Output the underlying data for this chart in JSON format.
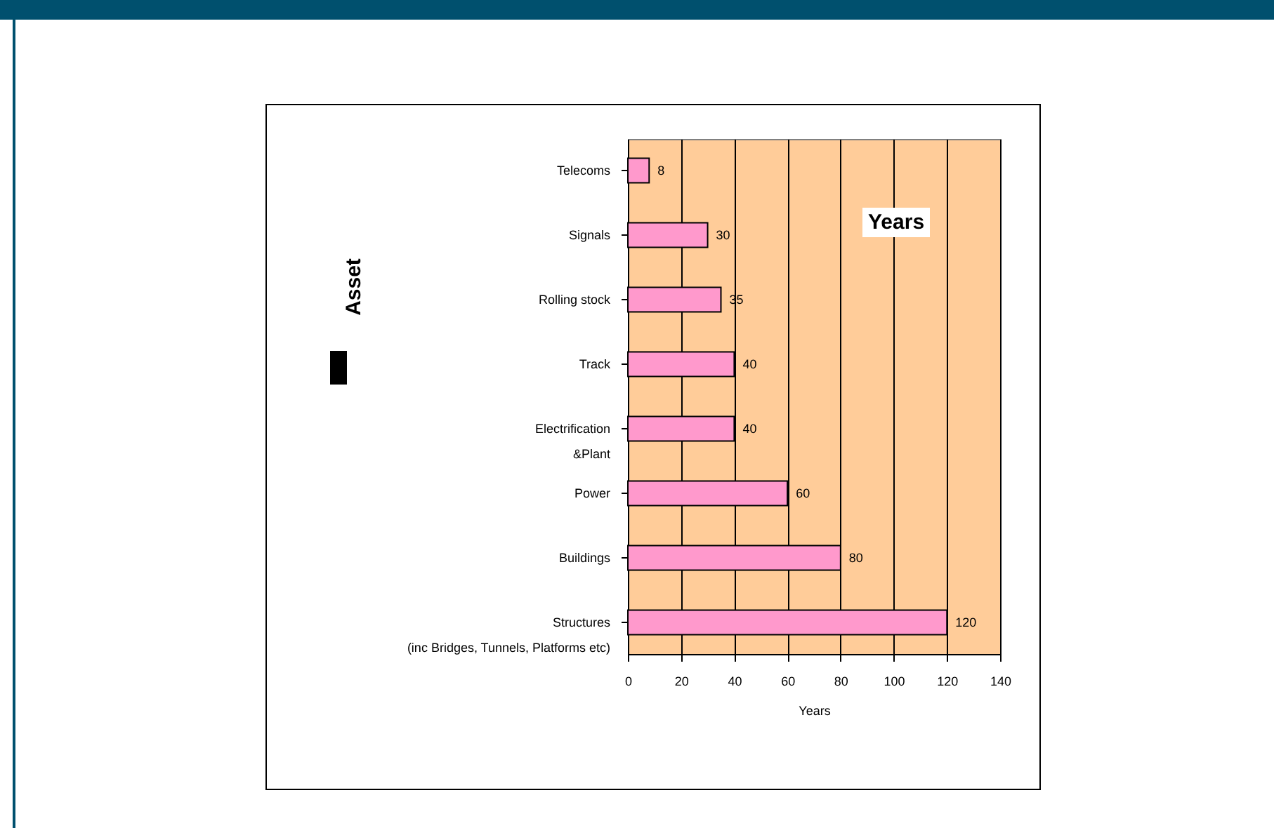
{
  "chart_data": {
    "type": "bar",
    "orientation": "horizontal",
    "xlabel": "Years",
    "ylabel": "Asset",
    "categories": [
      "Telecoms",
      "Signals",
      "Rolling stock",
      "Track",
      "Electrification\n&Plant",
      "Power",
      "Buildings",
      "Structures\n(inc Bridges, Tunnels, Platforms etc)"
    ],
    "values": [
      8,
      30,
      35,
      40,
      40,
      60,
      80,
      120
    ],
    "color": "#ff99cc",
    "xlim": [
      0,
      140
    ],
    "xticks": [
      0,
      20,
      40,
      60,
      80,
      100,
      120,
      140
    ],
    "grid": "x",
    "data_labels": true,
    "annotations": [
      "Years"
    ]
  }
}
